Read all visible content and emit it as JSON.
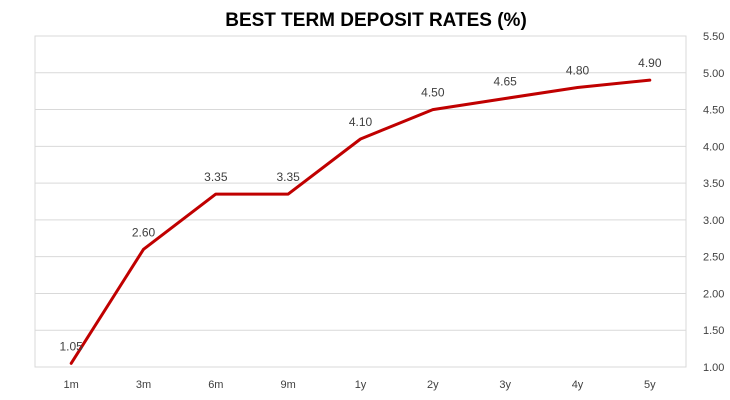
{
  "chart_data": {
    "type": "line",
    "title": "BEST TERM DEPOSIT RATES (%)",
    "xlabel": "",
    "ylabel": "",
    "categories": [
      "1m",
      "3m",
      "6m",
      "9m",
      "1y",
      "2y",
      "3y",
      "4y",
      "5y"
    ],
    "series": [
      {
        "values": [
          1.05,
          2.6,
          3.35,
          3.35,
          4.1,
          4.5,
          4.65,
          4.8,
          4.9
        ],
        "data_labels": [
          "1.05",
          "2.60",
          "3.35",
          "3.35",
          "4.10",
          "4.50",
          "4.65",
          "4.80",
          "4.90"
        ],
        "color": "#c00000"
      }
    ],
    "ylim": [
      1.0,
      5.5
    ],
    "yticks": [
      "1.00",
      "1.50",
      "2.00",
      "2.50",
      "3.00",
      "3.50",
      "4.00",
      "4.50",
      "5.00",
      "5.50"
    ],
    "y_axis_position": "right",
    "grid": true,
    "legend": "none"
  }
}
